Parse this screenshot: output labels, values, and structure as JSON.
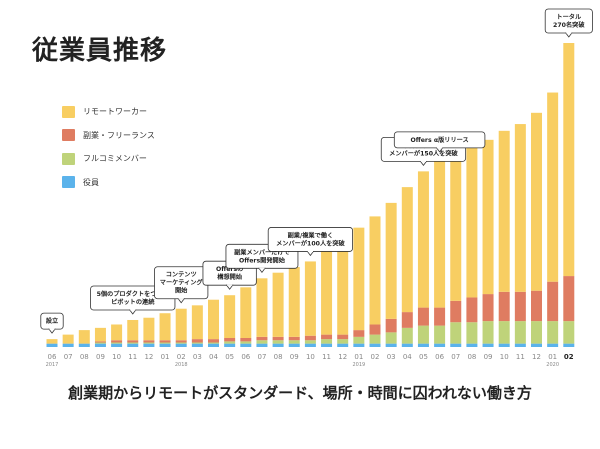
{
  "page": {
    "title": "従業員推移",
    "subtitle": "創業期からリモートがスタンダード、場所・時間に囚われない働き方"
  },
  "legend": [
    {
      "label": "リモートワーカー",
      "color": "#F8CE62"
    },
    {
      "label": "副業・フリーランス",
      "color": "#DF7C61"
    },
    {
      "label": "フルコミメンバー",
      "color": "#BFD37A"
    },
    {
      "label": "役員",
      "color": "#5BB3EB"
    }
  ],
  "chart_data": {
    "type": "bar",
    "stacked": true,
    "title": "従業員推移",
    "series_names": [
      "役員",
      "フルコミメンバー",
      "副業・フリーランス",
      "リモートワーカー"
    ],
    "categories": [
      "06",
      "07",
      "08",
      "09",
      "10",
      "11",
      "12",
      "01",
      "02",
      "03",
      "04",
      "05",
      "06",
      "07",
      "08",
      "09",
      "10",
      "11",
      "12",
      "01",
      "02",
      "03",
      "04",
      "05",
      "06",
      "07",
      "08",
      "09",
      "10",
      "11",
      "12",
      "01",
      "02"
    ],
    "year_labels": [
      {
        "index": 0,
        "label": "2017"
      },
      {
        "index": 8,
        "label": "2018"
      },
      {
        "index": 19,
        "label": "2019"
      },
      {
        "index": 31,
        "label": "2020"
      }
    ],
    "highlight_index": 32,
    "ylim": [
      0,
      270
    ],
    "series": [
      {
        "name": "役員",
        "values": [
          3,
          3,
          3,
          3,
          3,
          3,
          3,
          3,
          3,
          3,
          3,
          3,
          3,
          3,
          3,
          3,
          3,
          3,
          3,
          3,
          3,
          3,
          3,
          3,
          3,
          3,
          3,
          3,
          3,
          3,
          3,
          3,
          3
        ]
      },
      {
        "name": "フルコミメンバー",
        "values": [
          0,
          0,
          0,
          1,
          1,
          1,
          1,
          1,
          1,
          1,
          1,
          2,
          2,
          3,
          3,
          3,
          3,
          4,
          4,
          6,
          8,
          10,
          14,
          16,
          16,
          19,
          19,
          20,
          20,
          20,
          20,
          20,
          20
        ]
      },
      {
        "name": "副業・フリーランス",
        "values": [
          0,
          0,
          0,
          1,
          2,
          2,
          2,
          2,
          2,
          3,
          3,
          3,
          3,
          3,
          3,
          3,
          4,
          4,
          4,
          6,
          9,
          12,
          14,
          16,
          16,
          19,
          22,
          24,
          26,
          26,
          27,
          35,
          40
        ]
      },
      {
        "name": "リモートワーカー",
        "values": [
          4,
          8,
          12,
          12,
          14,
          18,
          20,
          24,
          28,
          30,
          35,
          38,
          45,
          52,
          57,
          62,
          66,
          74,
          82,
          91,
          96,
          103,
          111,
          121,
          133,
          133,
          136,
          137,
          143,
          149,
          158,
          168,
          207
        ]
      }
    ],
    "annotations": [
      {
        "index": 0,
        "lines": [
          "設立"
        ]
      },
      {
        "index": 5,
        "lines": [
          "5個のプロダクトをつくり",
          "ピボットの連続"
        ]
      },
      {
        "index": 8,
        "lines": [
          "コンテンツ",
          "マーケティング",
          "開始"
        ]
      },
      {
        "index": 11,
        "lines": [
          "Offersの",
          "構想開始"
        ]
      },
      {
        "index": 13,
        "lines": [
          "副業メンバーだけで",
          "Offers開発開始"
        ]
      },
      {
        "index": 16,
        "lines": [
          "副業/複業で働く",
          "メンバーが100人を突破"
        ]
      },
      {
        "index": 23,
        "lines": [
          "副業/複業で働く",
          "メンバーが150人を突破"
        ]
      },
      {
        "index": 24,
        "lines": [
          "Offers α版リリース"
        ]
      },
      {
        "index": 32,
        "lines": [
          "トータル",
          "270名突破"
        ]
      }
    ]
  }
}
